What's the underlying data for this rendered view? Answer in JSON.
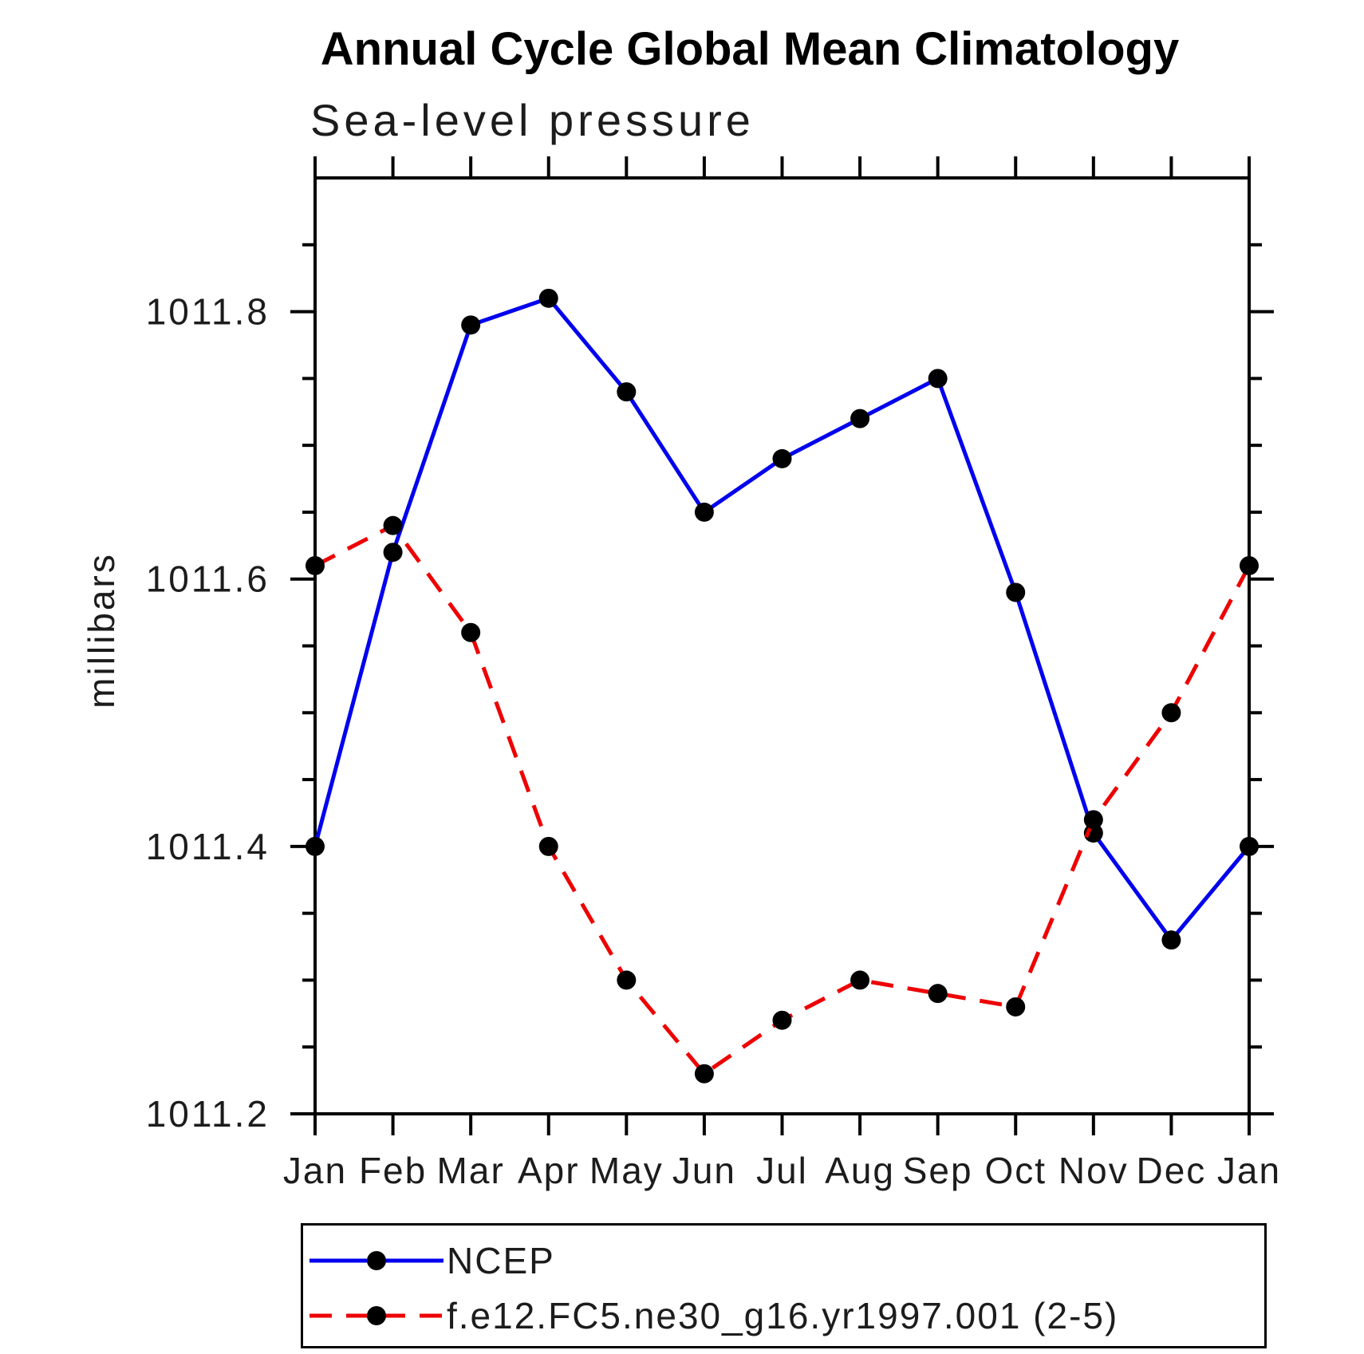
{
  "chart": {
    "title": "Annual Cycle Global Mean Climatology",
    "subtitle": "Sea-level pressure",
    "ylabel": "millibars"
  },
  "chart_data": {
    "type": "line",
    "title": "Annual Cycle Global Mean Climatology",
    "subtitle": "Sea-level pressure",
    "xlabel": "",
    "ylabel": "millibars",
    "x_categories": [
      "Jan",
      "Feb",
      "Mar",
      "Apr",
      "May",
      "Jun",
      "Jul",
      "Aug",
      "Sep",
      "Oct",
      "Nov",
      "Dec",
      "Jan"
    ],
    "series": [
      {
        "name": "NCEP",
        "line_style": "solid",
        "color": "#0000ee",
        "marker": "circle",
        "marker_color": "#000000",
        "values": [
          1011.4,
          1011.62,
          1011.79,
          1011.81,
          1011.74,
          1011.65,
          1011.69,
          1011.72,
          1011.75,
          1011.59,
          1011.41,
          1011.33,
          1011.4
        ]
      },
      {
        "name": "f.e12.FC5.ne30_g16.yr1997.001 (2-5)",
        "line_style": "dashed",
        "color": "#ee0000",
        "marker": "circle",
        "marker_color": "#000000",
        "values": [
          1011.61,
          1011.64,
          1011.56,
          1011.4,
          1011.3,
          1011.23,
          1011.27,
          1011.3,
          1011.29,
          1011.28,
          1011.42,
          1011.5,
          1011.61
        ]
      }
    ],
    "ylim": [
      1011.2,
      1011.9
    ],
    "yticks_major": [
      1011.2,
      1011.4,
      1011.6,
      1011.8
    ],
    "ytick_labels": [
      "1011.2",
      "1011.4",
      "1011.6",
      "1011.8"
    ],
    "ytick_minor_step": 0.05,
    "grid": false,
    "legend_position": "bottom-left-box"
  }
}
